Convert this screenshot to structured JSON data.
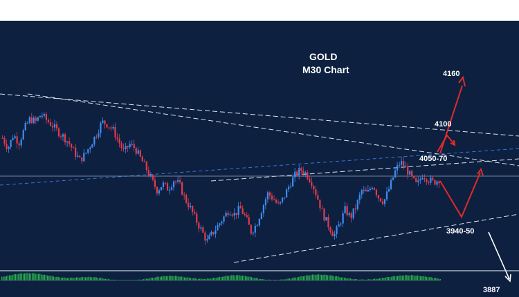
{
  "chart_data": {
    "type": "candlestick",
    "title": "GOLD",
    "subtitle": "M30 Chart",
    "colors": {
      "background": "#0d2040",
      "bull": "#3f8cf0",
      "bear": "#e43a4c",
      "trendline": "#dfe6f2",
      "blue_trendline": "#3a78d8",
      "projection": "#e22a2a",
      "projection_down": "#ffffff",
      "oscillator": "#27b24a"
    },
    "levels": [
      {
        "label": "4160",
        "value": 4160
      },
      {
        "label": "4100",
        "value": 4100
      },
      {
        "label": "4050-70",
        "value": 4060
      },
      {
        "label": "3940-50",
        "value": 3945
      },
      {
        "label": "3887",
        "value": 3887
      }
    ],
    "reference_price": 4030,
    "yscale": {
      "value_at_top": 4160,
      "value_at_bottom": 3887
    },
    "price_path": [
      4078,
      4065,
      4082,
      4072,
      4090,
      4102,
      4098,
      4108,
      4100,
      4094,
      4086,
      4080,
      4072,
      4060,
      4050,
      4058,
      4070,
      4083,
      4098,
      4095,
      4088,
      4074,
      4060,
      4070,
      4065,
      4052,
      4040,
      4025,
      4012,
      4020,
      4014,
      4025,
      4020,
      4002,
      3990,
      3975,
      3962,
      3948,
      3958,
      3968,
      3978,
      3988,
      3982,
      3990,
      3978,
      3960,
      3970,
      3990,
      4008,
      4002,
      3992,
      4005,
      4020,
      4032,
      4038,
      4033,
      4022,
      4003,
      3982,
      3968,
      3955,
      3970,
      3988,
      3978,
      3992,
      4012,
      4008,
      4020,
      4004,
      3998,
      4015,
      4035,
      4048,
      4040,
      4028,
      4018,
      4032,
      4026,
      4022,
      4026
    ]
  }
}
